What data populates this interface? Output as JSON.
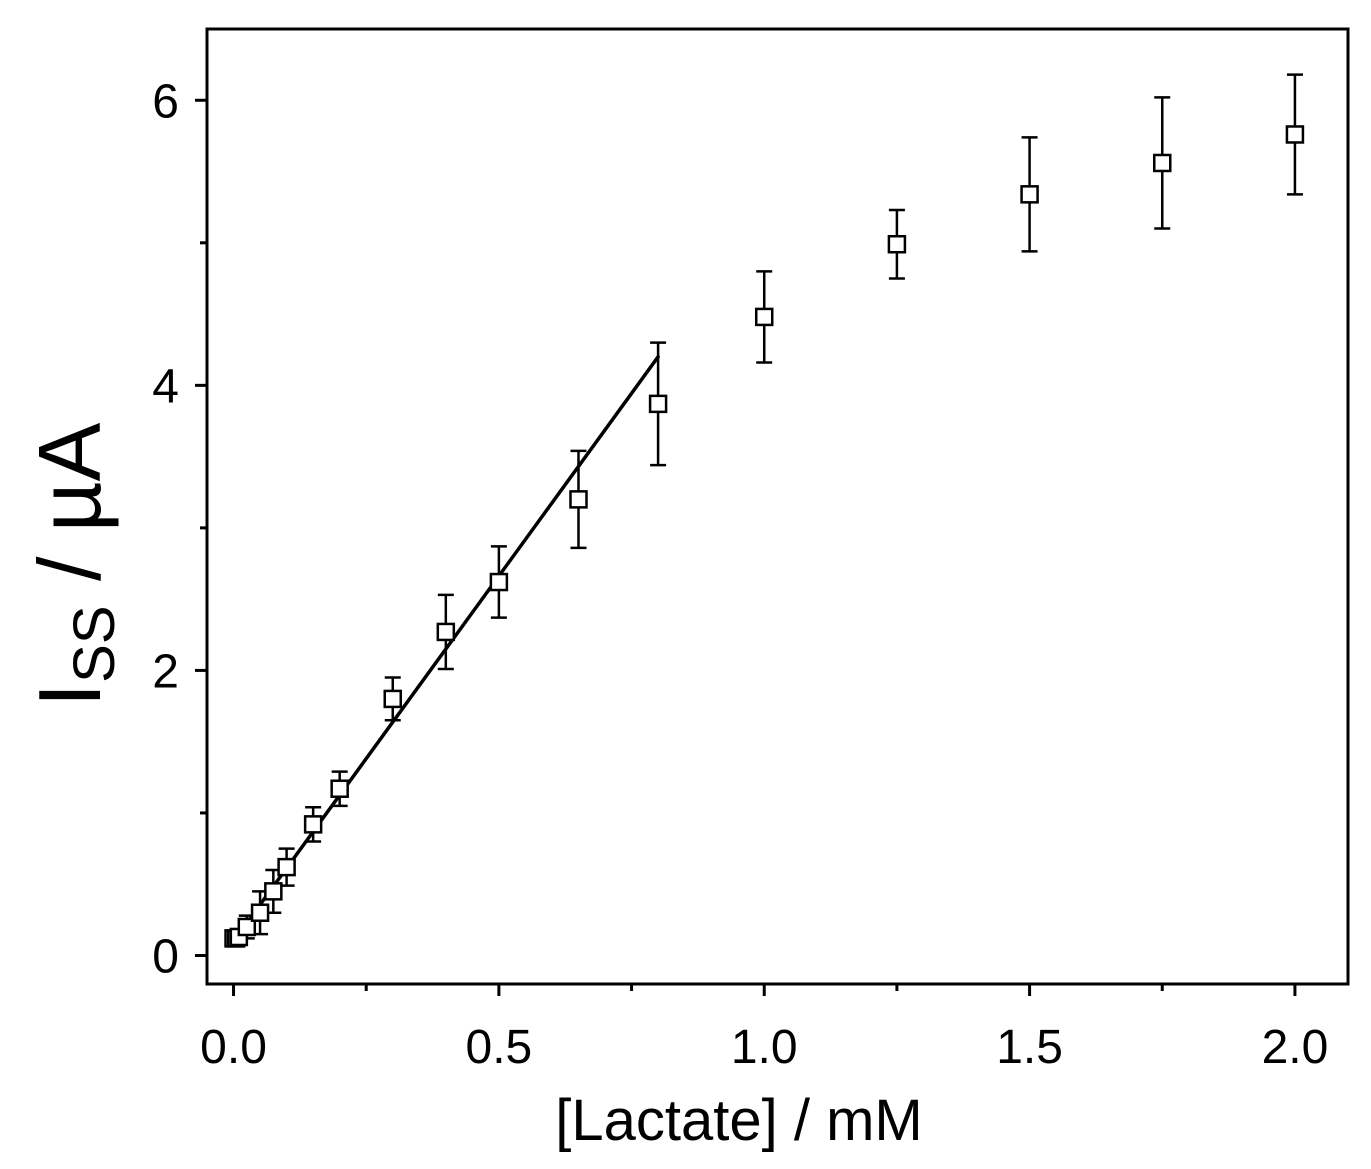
{
  "chart_data": {
    "type": "scatter",
    "xlabel": "[Lactate] / mM",
    "ylabel_main": "I",
    "ylabel_sub": "SS",
    "ylabel_rest": " / µA",
    "xlim": [
      -0.05,
      2.1
    ],
    "ylim": [
      -0.2,
      6.5
    ],
    "x_ticks": [
      0.0,
      0.5,
      1.0,
      1.5,
      2.0
    ],
    "x_tick_labels": [
      "0.0",
      "0.5",
      "1.0",
      "1.5",
      "2.0"
    ],
    "x_minor_ticks": [
      0.25,
      0.75,
      1.25,
      1.75
    ],
    "y_ticks": [
      0,
      2,
      4,
      6
    ],
    "y_tick_labels": [
      "0",
      "2",
      "4",
      "6"
    ],
    "y_minor_ticks": [
      1,
      3,
      5
    ],
    "grid": false,
    "series": [
      {
        "marker": "open-square",
        "x": [
          0.0,
          0.005,
          0.01,
          0.025,
          0.05,
          0.075,
          0.1,
          0.15,
          0.2,
          0.3,
          0.4,
          0.5,
          0.65,
          0.8,
          1.0,
          1.25,
          1.5,
          1.75,
          2.0
        ],
        "y": [
          0.12,
          0.12,
          0.13,
          0.2,
          0.3,
          0.45,
          0.62,
          0.92,
          1.17,
          1.8,
          2.27,
          2.62,
          3.2,
          3.87,
          4.48,
          4.99,
          5.34,
          5.56,
          5.76
        ],
        "error": [
          0.03,
          0.03,
          0.04,
          0.08,
          0.15,
          0.15,
          0.13,
          0.12,
          0.12,
          0.15,
          0.26,
          0.25,
          0.34,
          0.43,
          0.32,
          0.24,
          0.4,
          0.46,
          0.42
        ]
      },
      {
        "type": "line",
        "x": [
          0.0,
          0.8
        ],
        "y": [
          0.1,
          4.2
        ]
      }
    ]
  }
}
